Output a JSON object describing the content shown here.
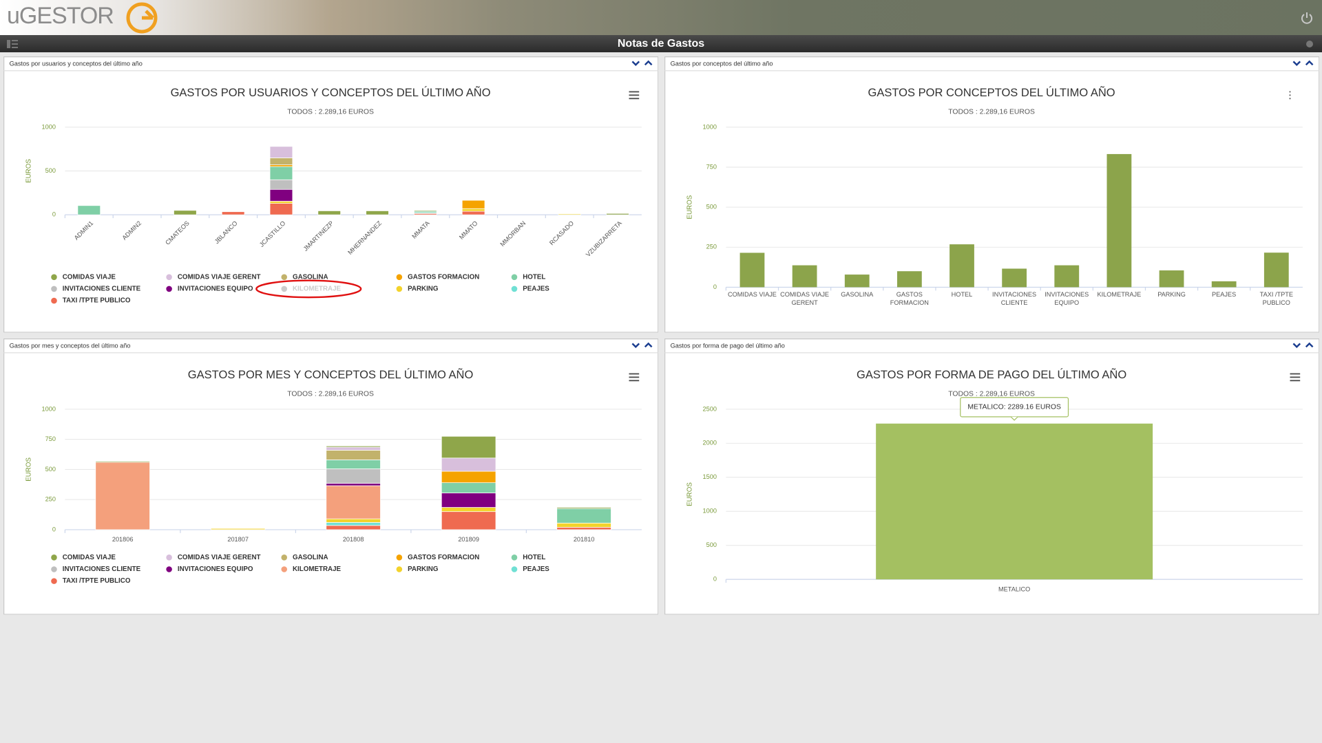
{
  "header": {
    "logo": "uGESTOR",
    "title": "Notas de Gastos"
  },
  "chart_data": [
    {
      "type": "bar",
      "stacked": true,
      "panel_title": "Gastos por usuarios y conceptos del último año",
      "title": "GASTOS POR USUARIOS Y CONCEPTOS DEL ÚLTIMO AÑO",
      "subtitle": "TODOS : 2.289,16 EUROS",
      "ylabel": "EUROS",
      "categories": [
        "ADMIN1",
        "ADMIN2",
        "CMATEOS",
        "JBLANCO",
        "JCASTILLO",
        "JMARTINEZP",
        "MHERNANDEZ",
        "MMATA",
        "MMATO",
        "MMORBAN",
        "RCASADO",
        "VZUBIZARRETA"
      ],
      "series": [
        {
          "name": "COMIDAS VIAJE",
          "color": "#8fa64a",
          "values": [
            0,
            0,
            50,
            0,
            0,
            45,
            45,
            10,
            0,
            0,
            0,
            15
          ]
        },
        {
          "name": "COMIDAS VIAJE GERENT",
          "color": "#d8bfdc",
          "values": [
            0,
            0,
            0,
            0,
            130,
            0,
            0,
            0,
            0,
            0,
            0,
            0
          ]
        },
        {
          "name": "GASOLINA",
          "color": "#c2b26b",
          "values": [
            0,
            0,
            0,
            0,
            80,
            0,
            0,
            0,
            0,
            0,
            0,
            0
          ]
        },
        {
          "name": "GASTOS FORMACION",
          "color": "#f5a300",
          "values": [
            0,
            0,
            0,
            0,
            20,
            0,
            0,
            0,
            95,
            0,
            0,
            0
          ]
        },
        {
          "name": "HOTEL",
          "color": "#7fcfa6",
          "values": [
            105,
            0,
            0,
            0,
            150,
            0,
            0,
            15,
            0,
            0,
            0,
            0
          ]
        },
        {
          "name": "INVITACIONES CLIENTE",
          "color": "#bfbfbf",
          "values": [
            0,
            0,
            0,
            0,
            110,
            0,
            0,
            0,
            0,
            0,
            0,
            0
          ]
        },
        {
          "name": "INVITACIONES EQUIPO",
          "color": "#800080",
          "values": [
            0,
            0,
            0,
            0,
            135,
            0,
            0,
            0,
            0,
            0,
            0,
            0
          ]
        },
        {
          "name": "KILOMETRAJE",
          "color": "#f4a07c",
          "visible": false,
          "values": [
            null,
            null,
            null,
            null,
            null,
            null,
            null,
            null,
            null,
            null,
            null,
            null
          ]
        },
        {
          "name": "PARKING",
          "color": "#f3d32c",
          "values": [
            0,
            0,
            0,
            0,
            25,
            0,
            0,
            0,
            30,
            0,
            10,
            0
          ]
        },
        {
          "name": "PEAJES",
          "color": "#70e0d4",
          "values": [
            0,
            0,
            0,
            0,
            0,
            0,
            0,
            10,
            0,
            0,
            0,
            0
          ]
        },
        {
          "name": "TAXI /TPTE PUBLICO",
          "color": "#ef6a50",
          "values": [
            0,
            0,
            0,
            35,
            130,
            0,
            0,
            15,
            40,
            0,
            0,
            0
          ]
        }
      ],
      "ylim": [
        0,
        1000
      ],
      "yticks": [
        0,
        500,
        1000
      ],
      "grid": true
    },
    {
      "type": "bar",
      "panel_title": "Gastos por conceptos del último año",
      "title": "GASTOS POR CONCEPTOS DEL ÚLTIMO AÑO",
      "subtitle": "TODOS : 2.289,16 EUROS",
      "ylabel": "EUROS",
      "categories": [
        "COMIDAS VIAJE",
        "COMIDAS VIAJE GERENT",
        "GASOLINA",
        "GASTOS FORMACION",
        "HOTEL",
        "INVITACIONES CLIENTE",
        "INVITACIONES EQUIPO",
        "KILOMETRAJE",
        "PARKING",
        "PEAJES",
        "TAXI /TPTE PUBLICO"
      ],
      "values": [
        215,
        137,
        79,
        100,
        268,
        116,
        137,
        832,
        105,
        37,
        216
      ],
      "color": "#8ca44b",
      "ylim": [
        0,
        1000
      ],
      "yticks": [
        0,
        250,
        500,
        750,
        1000
      ],
      "grid": true
    },
    {
      "type": "bar",
      "stacked": true,
      "panel_title": "Gastos por mes y conceptos del último año",
      "title": "GASTOS POR MES Y CONCEPTOS DEL ÚLTIMO AÑO",
      "subtitle": "TODOS : 2.289,16 EUROS",
      "ylabel": "EUROS",
      "categories": [
        "201806",
        "201807",
        "201808",
        "201809",
        "201810"
      ],
      "series": [
        {
          "name": "COMIDAS VIAJE",
          "color": "#8fa64a",
          "values": [
            8,
            0,
            10,
            180,
            10
          ]
        },
        {
          "name": "COMIDAS VIAJE GERENT",
          "color": "#d8bfdc",
          "values": [
            0,
            0,
            25,
            110,
            0
          ]
        },
        {
          "name": "GASOLINA",
          "color": "#c2b26b",
          "values": [
            0,
            0,
            80,
            0,
            0
          ]
        },
        {
          "name": "GASTOS FORMACION",
          "color": "#f5a300",
          "values": [
            0,
            0,
            0,
            95,
            0
          ]
        },
        {
          "name": "HOTEL",
          "color": "#7fcfa6",
          "values": [
            0,
            0,
            75,
            85,
            120
          ]
        },
        {
          "name": "INVITACIONES CLIENTE",
          "color": "#bfbfbf",
          "values": [
            0,
            0,
            120,
            0,
            0
          ]
        },
        {
          "name": "INVITACIONES EQUIPO",
          "color": "#800080",
          "values": [
            0,
            0,
            20,
            120,
            0
          ]
        },
        {
          "name": "KILOMETRAJE",
          "color": "#f4a07c",
          "values": [
            560,
            0,
            275,
            0,
            0
          ]
        },
        {
          "name": "PARKING",
          "color": "#f3d32c",
          "values": [
            0,
            10,
            30,
            35,
            35
          ]
        },
        {
          "name": "PEAJES",
          "color": "#70e0d4",
          "values": [
            0,
            0,
            25,
            0,
            0
          ]
        },
        {
          "name": "TAXI /TPTE PUBLICO",
          "color": "#ef6a50",
          "values": [
            0,
            0,
            35,
            150,
            20
          ]
        }
      ],
      "ylim": [
        0,
        1000
      ],
      "yticks": [
        0,
        250,
        500,
        750,
        1000
      ],
      "grid": true
    },
    {
      "type": "bar",
      "panel_title": "Gastos por forma de pago del último año",
      "title": "GASTOS POR FORMA DE PAGO DEL ÚLTIMO AÑO",
      "subtitle": "TODOS : 2.289,16 EUROS",
      "ylabel": "EUROS",
      "categories": [
        "METALICO"
      ],
      "values": [
        2289.16
      ],
      "color": "#a4c061",
      "tooltip": "METALICO: 2289.16 EUROS",
      "ylim": [
        0,
        2500
      ],
      "yticks": [
        0,
        500,
        1000,
        1500,
        2000,
        2500
      ],
      "grid": true
    }
  ]
}
